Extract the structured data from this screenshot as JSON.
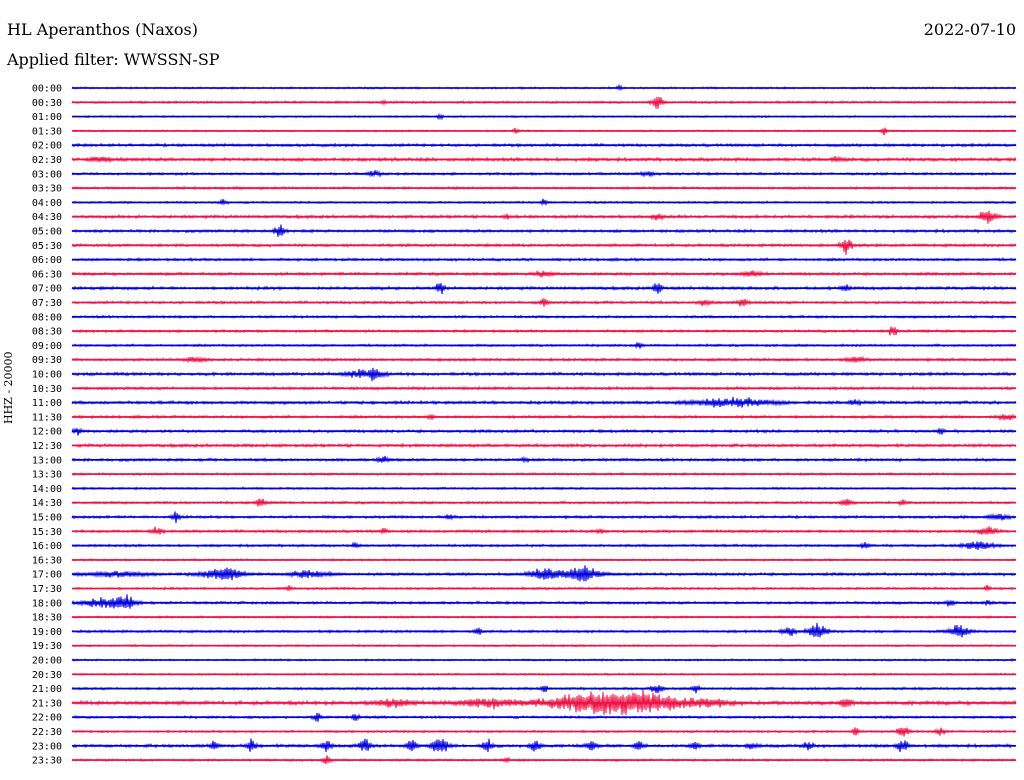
{
  "header": {
    "station": "HL Aperanthos (Naxos)",
    "date": "2022-07-10",
    "filter": "Applied filter: WWSSN-SP"
  },
  "chart_data": {
    "type": "line",
    "ylabel": "HHZ - 20000",
    "colors": [
      "#0000dd",
      "#ee1144"
    ],
    "rows": [
      {
        "time": "00:00",
        "noise": 1.0,
        "events": [
          {
            "x": 0.58,
            "amp": 2.5,
            "dur": 0.003
          }
        ]
      },
      {
        "time": "00:30",
        "noise": 1.2,
        "events": [
          {
            "x": 0.33,
            "amp": 3,
            "dur": 0.002
          },
          {
            "x": 0.62,
            "amp": 7,
            "dur": 0.006
          }
        ]
      },
      {
        "time": "01:00",
        "noise": 0.9,
        "events": [
          {
            "x": 0.39,
            "amp": 3,
            "dur": 0.003
          }
        ]
      },
      {
        "time": "01:30",
        "noise": 0.9,
        "events": [
          {
            "x": 0.47,
            "amp": 3,
            "dur": 0.003
          },
          {
            "x": 0.86,
            "amp": 4,
            "dur": 0.003
          }
        ]
      },
      {
        "time": "02:00",
        "noise": 1.5,
        "events": []
      },
      {
        "time": "02:30",
        "noise": 1.8,
        "events": [
          {
            "x": 0.03,
            "amp": 3,
            "dur": 0.01
          },
          {
            "x": 0.81,
            "amp": 3,
            "dur": 0.005
          }
        ]
      },
      {
        "time": "03:00",
        "noise": 1.3,
        "events": [
          {
            "x": 0.32,
            "amp": 2.5,
            "dur": 0.008
          },
          {
            "x": 0.61,
            "amp": 2.5,
            "dur": 0.008
          }
        ]
      },
      {
        "time": "03:30",
        "noise": 1.3,
        "events": []
      },
      {
        "time": "04:00",
        "noise": 1.1,
        "events": [
          {
            "x": 0.16,
            "amp": 3,
            "dur": 0.004
          },
          {
            "x": 0.5,
            "amp": 3,
            "dur": 0.004
          }
        ]
      },
      {
        "time": "04:30",
        "noise": 1.6,
        "events": [
          {
            "x": 0.46,
            "amp": 3,
            "dur": 0.003
          },
          {
            "x": 0.62,
            "amp": 4,
            "dur": 0.005
          },
          {
            "x": 0.97,
            "amp": 8,
            "dur": 0.008
          }
        ]
      },
      {
        "time": "05:00",
        "noise": 1.5,
        "events": [
          {
            "x": 0.22,
            "amp": 9,
            "dur": 0.005
          }
        ]
      },
      {
        "time": "05:30",
        "noise": 1.5,
        "events": [
          {
            "x": 0.82,
            "amp": 9,
            "dur": 0.006
          }
        ]
      },
      {
        "time": "06:00",
        "noise": 1.4,
        "events": []
      },
      {
        "time": "06:30",
        "noise": 1.5,
        "events": [
          {
            "x": 0.5,
            "amp": 3,
            "dur": 0.01
          },
          {
            "x": 0.72,
            "amp": 3,
            "dur": 0.01
          }
        ]
      },
      {
        "time": "07:00",
        "noise": 1.6,
        "events": [
          {
            "x": 0.39,
            "amp": 7,
            "dur": 0.004
          },
          {
            "x": 0.62,
            "amp": 9,
            "dur": 0.004
          },
          {
            "x": 0.82,
            "amp": 5,
            "dur": 0.004
          }
        ]
      },
      {
        "time": "07:30",
        "noise": 1.4,
        "events": [
          {
            "x": 0.5,
            "amp": 5,
            "dur": 0.004
          },
          {
            "x": 0.67,
            "amp": 4,
            "dur": 0.006
          },
          {
            "x": 0.71,
            "amp": 4,
            "dur": 0.006
          }
        ]
      },
      {
        "time": "08:00",
        "noise": 1.3,
        "events": []
      },
      {
        "time": "08:30",
        "noise": 1.3,
        "events": [
          {
            "x": 0.87,
            "amp": 7,
            "dur": 0.004
          }
        ]
      },
      {
        "time": "09:00",
        "noise": 1.2,
        "events": [
          {
            "x": 0.6,
            "amp": 5,
            "dur": 0.003
          }
        ]
      },
      {
        "time": "09:30",
        "noise": 1.5,
        "events": [
          {
            "x": 0.13,
            "amp": 3,
            "dur": 0.01
          },
          {
            "x": 0.83,
            "amp": 3,
            "dur": 0.01
          }
        ]
      },
      {
        "time": "10:00",
        "noise": 1.6,
        "events": [
          {
            "x": 0.31,
            "amp": 4,
            "dur": 0.02
          },
          {
            "x": 0.32,
            "amp": 11,
            "dur": 0.004
          }
        ]
      },
      {
        "time": "10:30",
        "noise": 1.5,
        "events": []
      },
      {
        "time": "11:00",
        "noise": 1.6,
        "events": [
          {
            "x": 0.7,
            "amp": 5,
            "dur": 0.04
          },
          {
            "x": 0.83,
            "amp": 3,
            "dur": 0.006
          }
        ]
      },
      {
        "time": "11:30",
        "noise": 1.4,
        "events": [
          {
            "x": 0.38,
            "amp": 4,
            "dur": 0.003
          },
          {
            "x": 0.99,
            "amp": 3,
            "dur": 0.008
          }
        ]
      },
      {
        "time": "12:00",
        "noise": 1.5,
        "events": [
          {
            "x": 0.005,
            "amp": 4,
            "dur": 0.005
          },
          {
            "x": 0.92,
            "amp": 4,
            "dur": 0.003
          }
        ]
      },
      {
        "time": "12:30",
        "noise": 1.6,
        "events": []
      },
      {
        "time": "13:00",
        "noise": 1.5,
        "events": [
          {
            "x": 0.33,
            "amp": 4,
            "dur": 0.005
          },
          {
            "x": 0.48,
            "amp": 3,
            "dur": 0.003
          }
        ]
      },
      {
        "time": "13:30",
        "noise": 1.2,
        "events": []
      },
      {
        "time": "14:00",
        "noise": 1.1,
        "events": []
      },
      {
        "time": "14:30",
        "noise": 1.3,
        "events": [
          {
            "x": 0.2,
            "amp": 6,
            "dur": 0.005
          },
          {
            "x": 0.82,
            "amp": 7,
            "dur": 0.005
          },
          {
            "x": 0.88,
            "amp": 3,
            "dur": 0.003
          }
        ]
      },
      {
        "time": "15:00",
        "noise": 1.4,
        "events": [
          {
            "x": 0.11,
            "amp": 6,
            "dur": 0.005
          },
          {
            "x": 0.4,
            "amp": 4,
            "dur": 0.004
          },
          {
            "x": 0.98,
            "amp": 4,
            "dur": 0.01
          }
        ]
      },
      {
        "time": "15:30",
        "noise": 1.4,
        "events": [
          {
            "x": 0.09,
            "amp": 5,
            "dur": 0.005
          },
          {
            "x": 0.33,
            "amp": 4,
            "dur": 0.003
          },
          {
            "x": 0.56,
            "amp": 3,
            "dur": 0.003
          },
          {
            "x": 0.97,
            "amp": 6,
            "dur": 0.008
          }
        ]
      },
      {
        "time": "16:00",
        "noise": 1.3,
        "events": [
          {
            "x": 0.3,
            "amp": 3,
            "dur": 0.003
          },
          {
            "x": 0.84,
            "amp": 3,
            "dur": 0.005
          },
          {
            "x": 0.96,
            "amp": 5,
            "dur": 0.015
          }
        ]
      },
      {
        "time": "16:30",
        "noise": 1.0,
        "events": []
      },
      {
        "time": "17:00",
        "noise": 1.5,
        "events": [
          {
            "x": 0.05,
            "amp": 3,
            "dur": 0.03
          },
          {
            "x": 0.16,
            "amp": 8,
            "dur": 0.02
          },
          {
            "x": 0.25,
            "amp": 4,
            "dur": 0.02
          },
          {
            "x": 0.5,
            "amp": 7,
            "dur": 0.015
          },
          {
            "x": 0.54,
            "amp": 9,
            "dur": 0.02
          }
        ]
      },
      {
        "time": "17:30",
        "noise": 1.2,
        "events": [
          {
            "x": 0.23,
            "amp": 3,
            "dur": 0.003
          },
          {
            "x": 0.97,
            "amp": 3,
            "dur": 0.003
          }
        ]
      },
      {
        "time": "18:00",
        "noise": 1.4,
        "events": [
          {
            "x": 0.03,
            "amp": 5,
            "dur": 0.02
          },
          {
            "x": 0.055,
            "amp": 8,
            "dur": 0.012
          },
          {
            "x": 0.93,
            "amp": 5,
            "dur": 0.004
          },
          {
            "x": 0.97,
            "amp": 3,
            "dur": 0.003
          }
        ]
      },
      {
        "time": "18:30",
        "noise": 1.1,
        "events": []
      },
      {
        "time": "19:00",
        "noise": 1.3,
        "events": [
          {
            "x": 0.43,
            "amp": 4,
            "dur": 0.004
          },
          {
            "x": 0.76,
            "amp": 6,
            "dur": 0.006
          },
          {
            "x": 0.79,
            "amp": 9,
            "dur": 0.01
          },
          {
            "x": 0.94,
            "amp": 8,
            "dur": 0.01
          }
        ]
      },
      {
        "time": "19:30",
        "noise": 1.0,
        "events": []
      },
      {
        "time": "20:00",
        "noise": 1.0,
        "events": []
      },
      {
        "time": "20:30",
        "noise": 1.0,
        "events": []
      },
      {
        "time": "21:00",
        "noise": 1.3,
        "events": [
          {
            "x": 0.5,
            "amp": 5,
            "dur": 0.003
          },
          {
            "x": 0.62,
            "amp": 6,
            "dur": 0.006
          },
          {
            "x": 0.66,
            "amp": 5,
            "dur": 0.004
          }
        ]
      },
      {
        "time": "21:30",
        "noise": 2.0,
        "events": [
          {
            "x": 0.34,
            "amp": 4,
            "dur": 0.02
          },
          {
            "x": 0.44,
            "amp": 5,
            "dur": 0.03
          },
          {
            "x": 0.55,
            "amp": 11,
            "dur": 0.05
          },
          {
            "x": 0.61,
            "amp": 10,
            "dur": 0.04
          },
          {
            "x": 0.68,
            "amp": 4,
            "dur": 0.02
          },
          {
            "x": 0.82,
            "amp": 7,
            "dur": 0.006
          }
        ]
      },
      {
        "time": "22:00",
        "noise": 1.3,
        "events": [
          {
            "x": 0.26,
            "amp": 5,
            "dur": 0.004
          },
          {
            "x": 0.3,
            "amp": 4,
            "dur": 0.004
          }
        ]
      },
      {
        "time": "22:30",
        "noise": 1.1,
        "events": [
          {
            "x": 0.83,
            "amp": 6,
            "dur": 0.003
          },
          {
            "x": 0.88,
            "amp": 7,
            "dur": 0.006
          },
          {
            "x": 0.92,
            "amp": 4,
            "dur": 0.005
          }
        ]
      },
      {
        "time": "23:00",
        "noise": 1.6,
        "events": [
          {
            "x": 0.15,
            "amp": 6,
            "dur": 0.004
          },
          {
            "x": 0.19,
            "amp": 7,
            "dur": 0.005
          },
          {
            "x": 0.27,
            "amp": 8,
            "dur": 0.005
          },
          {
            "x": 0.31,
            "amp": 9,
            "dur": 0.006
          },
          {
            "x": 0.36,
            "amp": 7,
            "dur": 0.005
          },
          {
            "x": 0.39,
            "amp": 10,
            "dur": 0.008
          },
          {
            "x": 0.44,
            "amp": 7,
            "dur": 0.005
          },
          {
            "x": 0.49,
            "amp": 8,
            "dur": 0.005
          },
          {
            "x": 0.55,
            "amp": 7,
            "dur": 0.005
          },
          {
            "x": 0.6,
            "amp": 6,
            "dur": 0.005
          },
          {
            "x": 0.66,
            "amp": 5,
            "dur": 0.005
          },
          {
            "x": 0.72,
            "amp": 4,
            "dur": 0.005
          },
          {
            "x": 0.78,
            "amp": 4,
            "dur": 0.005
          },
          {
            "x": 0.88,
            "amp": 8,
            "dur": 0.006
          }
        ]
      },
      {
        "time": "23:30",
        "noise": 1.2,
        "events": [
          {
            "x": 0.27,
            "amp": 6,
            "dur": 0.004
          },
          {
            "x": 0.46,
            "amp": 3,
            "dur": 0.003
          }
        ]
      }
    ]
  }
}
